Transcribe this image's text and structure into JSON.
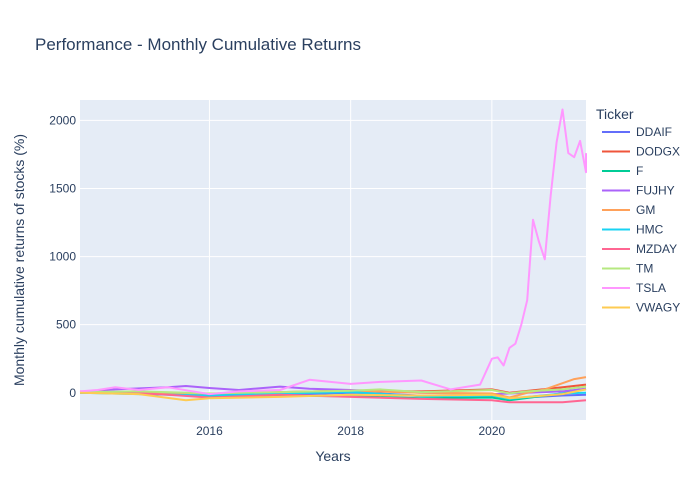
{
  "chart_data": {
    "type": "line",
    "title": "Performance - Monthly Cumulative Returns",
    "xlabel": "Years",
    "ylabel": "Monthly cumulative returns of stocks (%)",
    "x_range": [
      "2014-03",
      "2021-05"
    ],
    "xticks": [
      {
        "value": "2016-01",
        "label": "2016"
      },
      {
        "value": "2018-01",
        "label": "2018"
      },
      {
        "value": "2020-01",
        "label": "2020"
      }
    ],
    "ylim": [
      -200,
      2150
    ],
    "yticks": [
      0,
      500,
      1000,
      1500,
      2000
    ],
    "grid": true,
    "legend_title": "Ticker",
    "legend_position": "right",
    "series": [
      {
        "name": "DDAIF",
        "color": "#636efa",
        "points": [
          [
            "2014-03",
            0
          ],
          [
            "2015-01",
            -5
          ],
          [
            "2015-06",
            -12
          ],
          [
            "2016-01",
            -22
          ],
          [
            "2017-01",
            -15
          ],
          [
            "2018-01",
            0
          ],
          [
            "2018-06",
            -5
          ],
          [
            "2019-01",
            -22
          ],
          [
            "2020-01",
            -20
          ],
          [
            "2020-04",
            -40
          ],
          [
            "2021-01",
            -20
          ],
          [
            "2021-05",
            -15
          ]
        ]
      },
      {
        "name": "DODGX",
        "color": "#EF553B",
        "points": [
          [
            "2014-03",
            0
          ],
          [
            "2015-01",
            5
          ],
          [
            "2015-09",
            -5
          ],
          [
            "2016-01",
            -8
          ],
          [
            "2017-01",
            5
          ],
          [
            "2018-01",
            15
          ],
          [
            "2019-01",
            10
          ],
          [
            "2020-01",
            25
          ],
          [
            "2020-04",
            0
          ],
          [
            "2021-01",
            40
          ],
          [
            "2021-05",
            60
          ]
        ]
      },
      {
        "name": "F",
        "color": "#00cc96",
        "points": [
          [
            "2014-03",
            0
          ],
          [
            "2015-01",
            -5
          ],
          [
            "2016-01",
            -25
          ],
          [
            "2017-01",
            -22
          ],
          [
            "2018-01",
            -25
          ],
          [
            "2019-01",
            -40
          ],
          [
            "2020-01",
            -35
          ],
          [
            "2020-04",
            -55
          ],
          [
            "2021-01",
            -5
          ],
          [
            "2021-05",
            30
          ]
        ]
      },
      {
        "name": "FUJHY",
        "color": "#ab63fa",
        "points": [
          [
            "2014-03",
            5
          ],
          [
            "2014-09",
            25
          ],
          [
            "2015-06",
            40
          ],
          [
            "2015-09",
            50
          ],
          [
            "2016-01",
            35
          ],
          [
            "2016-06",
            20
          ],
          [
            "2017-01",
            45
          ],
          [
            "2017-06",
            30
          ],
          [
            "2018-01",
            20
          ],
          [
            "2019-01",
            0
          ],
          [
            "2020-01",
            -10
          ],
          [
            "2021-01",
            10
          ],
          [
            "2021-05",
            30
          ]
        ]
      },
      {
        "name": "GM",
        "color": "#FFA15A",
        "points": [
          [
            "2014-03",
            0
          ],
          [
            "2015-01",
            -5
          ],
          [
            "2016-01",
            -15
          ],
          [
            "2017-01",
            5
          ],
          [
            "2018-01",
            15
          ],
          [
            "2019-01",
            0
          ],
          [
            "2020-01",
            -5
          ],
          [
            "2020-04",
            -35
          ],
          [
            "2020-07",
            0
          ],
          [
            "2020-10",
            25
          ],
          [
            "2021-01",
            70
          ],
          [
            "2021-03",
            100
          ],
          [
            "2021-05",
            115
          ]
        ]
      },
      {
        "name": "HMC",
        "color": "#19d3f3",
        "points": [
          [
            "2014-03",
            0
          ],
          [
            "2015-01",
            -10
          ],
          [
            "2016-01",
            -20
          ],
          [
            "2017-01",
            -5
          ],
          [
            "2018-01",
            5
          ],
          [
            "2019-01",
            -25
          ],
          [
            "2020-01",
            -20
          ],
          [
            "2020-04",
            -45
          ],
          [
            "2021-01",
            -5
          ],
          [
            "2021-05",
            0
          ]
        ]
      },
      {
        "name": "MZDAY",
        "color": "#FF6692",
        "points": [
          [
            "2014-03",
            10
          ],
          [
            "2014-09",
            5
          ],
          [
            "2015-06",
            -15
          ],
          [
            "2016-01",
            -35
          ],
          [
            "2017-01",
            -15
          ],
          [
            "2018-01",
            -30
          ],
          [
            "2019-01",
            -45
          ],
          [
            "2020-01",
            -55
          ],
          [
            "2020-04",
            -70
          ],
          [
            "2021-01",
            -70
          ],
          [
            "2021-05",
            -55
          ]
        ]
      },
      {
        "name": "TM",
        "color": "#B6E880",
        "points": [
          [
            "2014-03",
            5
          ],
          [
            "2015-01",
            10
          ],
          [
            "2016-01",
            -5
          ],
          [
            "2017-01",
            5
          ],
          [
            "2018-01",
            15
          ],
          [
            "2018-06",
            25
          ],
          [
            "2019-01",
            5
          ],
          [
            "2020-01",
            20
          ],
          [
            "2020-04",
            -5
          ],
          [
            "2020-07",
            10
          ],
          [
            "2021-01",
            25
          ],
          [
            "2021-05",
            45
          ]
        ]
      },
      {
        "name": "TSLA",
        "color": "#FF97FF",
        "points": [
          [
            "2014-03",
            10
          ],
          [
            "2014-06",
            20
          ],
          [
            "2014-09",
            40
          ],
          [
            "2015-01",
            20
          ],
          [
            "2015-06",
            40
          ],
          [
            "2016-01",
            -10
          ],
          [
            "2016-06",
            10
          ],
          [
            "2017-01",
            20
          ],
          [
            "2017-06",
            95
          ],
          [
            "2018-01",
            65
          ],
          [
            "2018-06",
            80
          ],
          [
            "2019-01",
            90
          ],
          [
            "2019-06",
            25
          ],
          [
            "2019-11",
            60
          ],
          [
            "2020-01",
            250
          ],
          [
            "2020-02",
            260
          ],
          [
            "2020-03",
            200
          ],
          [
            "2020-04",
            330
          ],
          [
            "2020-05",
            360
          ],
          [
            "2020-06",
            500
          ],
          [
            "2020-07",
            680
          ],
          [
            "2020-08",
            1270
          ],
          [
            "2020-09",
            1110
          ],
          [
            "2020-10",
            980
          ],
          [
            "2020-11",
            1450
          ],
          [
            "2020-12",
            1840
          ],
          [
            "2021-01",
            2080
          ],
          [
            "2021-02",
            1760
          ],
          [
            "2021-03",
            1730
          ],
          [
            "2021-04",
            1850
          ],
          [
            "2021-05",
            1620
          ],
          [
            "2021-06",
            1760
          ]
        ]
      },
      {
        "name": "VWAGY",
        "color": "#FECB52",
        "points": [
          [
            "2014-03",
            0
          ],
          [
            "2015-01",
            -10
          ],
          [
            "2015-09",
            -55
          ],
          [
            "2016-01",
            -40
          ],
          [
            "2017-01",
            -30
          ],
          [
            "2018-01",
            -15
          ],
          [
            "2019-01",
            -20
          ],
          [
            "2020-01",
            -15
          ],
          [
            "2020-04",
            -40
          ],
          [
            "2021-01",
            -10
          ],
          [
            "2021-05",
            25
          ]
        ]
      }
    ]
  }
}
